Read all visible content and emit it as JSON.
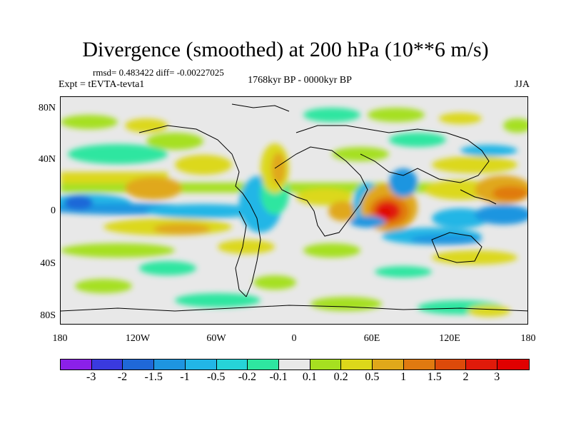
{
  "title": "Divergence (smoothed) at 200 hPa (10**6 m/s)",
  "stats": "rmsd= 0.483422 diff= -0.00227025",
  "experiment": "Expt = tEVTA-tevta1",
  "period": "1768kyr BP - 0000kyr BP",
  "season": "JJA",
  "y_axis_labels": [
    "80N",
    "40N",
    "0",
    "40S",
    "80S"
  ],
  "x_axis_labels": [
    "180",
    "120W",
    "60W",
    "0",
    "60E",
    "120E",
    "180"
  ],
  "colorbar": {
    "labels": [
      "-3",
      "-2",
      "-1.5",
      "-1",
      "-0.5",
      "-0.2",
      "-0.1",
      "0.1",
      "0.2",
      "0.5",
      "1",
      "1.5",
      "2",
      "3"
    ],
    "colors": [
      "#8b20e8",
      "#3a3adf",
      "#1f68d8",
      "#1e95e0",
      "#22b6e6",
      "#26d4d8",
      "#2ee6a0",
      "#e8e8e8",
      "#a6e020",
      "#dcd81a",
      "#e0a81a",
      "#e07a10",
      "#dd4a0a",
      "#e01a0a",
      "#e00000"
    ]
  },
  "colors": {
    "background": "#ffffff",
    "map_background": "#e8e8e8",
    "coastline": "#000000"
  }
}
